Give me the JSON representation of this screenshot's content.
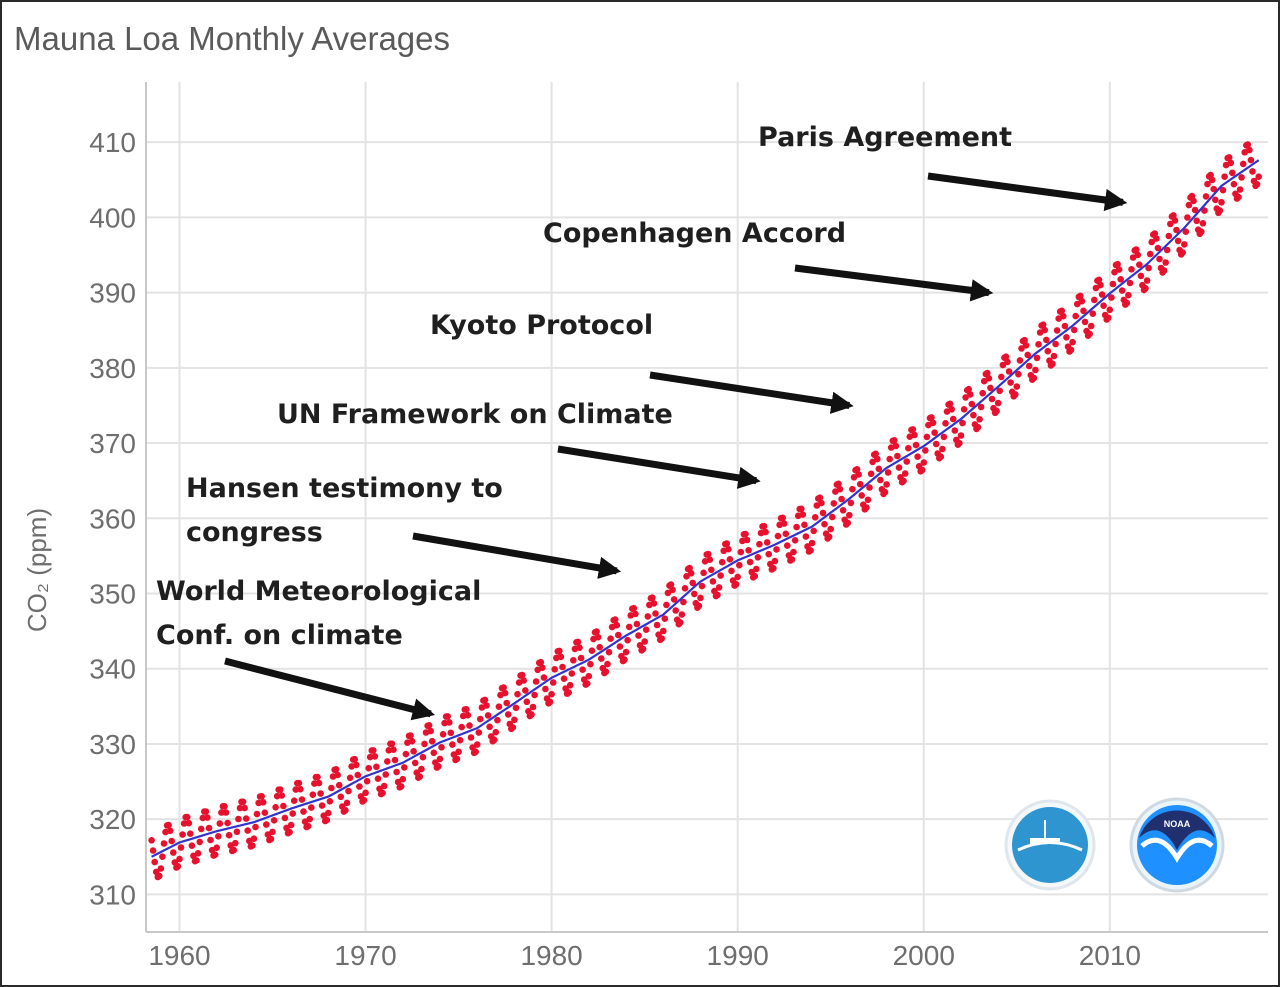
{
  "chart_data": {
    "type": "line",
    "title": "Mauna Loa Monthly Averages",
    "xlabel": "",
    "ylabel": "CO₂ (ppm)",
    "xlim": [
      1958.2,
      2018.5
    ],
    "ylim": [
      305,
      418
    ],
    "x_ticks": [
      "1960",
      "1970",
      "1980",
      "1990",
      "2000",
      "2010"
    ],
    "y_ticks": [
      "310",
      "320",
      "330",
      "340",
      "350",
      "360",
      "370",
      "380",
      "390",
      "400",
      "410"
    ],
    "grid": true,
    "series": [
      {
        "color": "#e8112d",
        "style": "monthly-average-dots",
        "x": [
          1958.5,
          1960,
          1962,
          1964,
          1966,
          1968,
          1970,
          1972,
          1974,
          1976,
          1978,
          1980,
          1982,
          1984,
          1986,
          1988,
          1990,
          1992,
          1994,
          1996,
          1998,
          2000,
          2002,
          2004,
          2006,
          2008,
          2010,
          2012,
          2014,
          2016,
          2018
        ],
        "values": [
          315.0,
          316.9,
          318.4,
          319.6,
          321.4,
          323.0,
          325.7,
          327.5,
          330.2,
          332.1,
          335.4,
          338.8,
          341.2,
          344.4,
          347.2,
          351.6,
          354.4,
          356.5,
          358.9,
          362.6,
          366.7,
          369.6,
          373.2,
          377.5,
          381.9,
          385.6,
          389.9,
          393.8,
          398.6,
          404.2,
          407.6
        ],
        "seasonal_amplitude_ppm": 3.2
      },
      {
        "color": "#3333cc",
        "style": "trend-line",
        "x": [
          1958.5,
          1960,
          1962,
          1964,
          1966,
          1968,
          1970,
          1972,
          1974,
          1976,
          1978,
          1980,
          1982,
          1984,
          1986,
          1988,
          1990,
          1992,
          1994,
          1996,
          1998,
          2000,
          2002,
          2004,
          2006,
          2008,
          2010,
          2012,
          2014,
          2016,
          2018
        ],
        "values": [
          315.0,
          316.9,
          318.4,
          319.6,
          321.4,
          323.0,
          325.7,
          327.5,
          330.2,
          332.1,
          335.4,
          338.8,
          341.2,
          344.4,
          347.2,
          351.6,
          354.4,
          356.5,
          358.9,
          362.6,
          366.7,
          369.6,
          373.2,
          377.5,
          381.9,
          385.6,
          389.9,
          393.8,
          398.6,
          404.2,
          407.6
        ]
      }
    ],
    "annotations": [
      {
        "lines": [
          "World Meteorological",
          "Conf. on climate"
        ],
        "arrow_to": [
          1973.5,
          334
        ]
      },
      {
        "lines": [
          "Hansen testimony to",
          "congress"
        ],
        "arrow_to": [
          1983.5,
          353
        ]
      },
      {
        "lines": [
          "UN Framework on Climate"
        ],
        "arrow_to": [
          1991.0,
          365
        ]
      },
      {
        "lines": [
          "Kyoto Protocol"
        ],
        "arrow_to": [
          1996.0,
          375
        ]
      },
      {
        "lines": [
          "Copenhagen Accord"
        ],
        "arrow_to": [
          2003.5,
          390
        ]
      },
      {
        "lines": [
          "Paris Agreement"
        ],
        "arrow_to": [
          2010.7,
          402
        ]
      }
    ]
  },
  "logos": [
    {
      "icon": "scripps-ucsd-logo-icon",
      "color": "#2e95d0"
    },
    {
      "icon": "noaa-logo-icon",
      "color": "#1e90ff",
      "text": "NOAA"
    }
  ]
}
